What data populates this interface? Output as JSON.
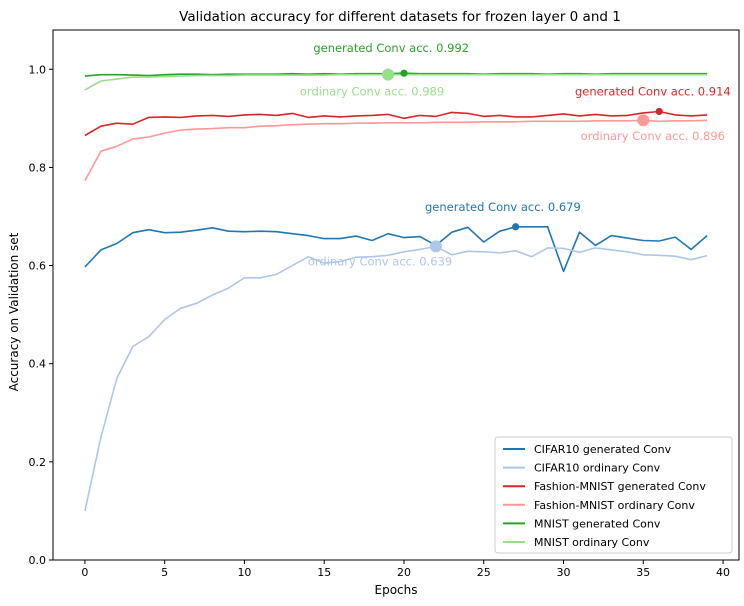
{
  "chart_data": {
    "type": "line",
    "title": "Validation accuracy for different datasets for frozen layer 0 and 1",
    "xlabel": "Epochs",
    "ylabel": "Accuracy on Validation set",
    "xlim": [
      -2.0,
      41.0
    ],
    "ylim": [
      0.0,
      1.08
    ],
    "xticks": [
      0,
      5,
      10,
      15,
      20,
      25,
      30,
      35,
      40
    ],
    "yticks": [
      0.0,
      0.2,
      0.4,
      0.6,
      0.8,
      1.0
    ],
    "xtick_labels": [
      "0",
      "5",
      "10",
      "15",
      "20",
      "25",
      "30",
      "35",
      "40"
    ],
    "ytick_labels": [
      "0.0",
      "0.2",
      "0.4",
      "0.6",
      "0.8",
      "1.0"
    ],
    "grid": false,
    "legend_position": "bottom-right",
    "x": [
      0,
      1,
      2,
      3,
      4,
      5,
      6,
      7,
      8,
      9,
      10,
      11,
      12,
      13,
      14,
      15,
      16,
      17,
      18,
      19,
      20,
      21,
      22,
      23,
      24,
      25,
      26,
      27,
      28,
      29,
      30,
      31,
      32,
      33,
      34,
      35,
      36,
      37,
      38,
      39
    ],
    "series": [
      {
        "name": "CIFAR10 generated Conv",
        "color": "#1f77b4",
        "values": [
          0.597,
          0.632,
          0.645,
          0.667,
          0.673,
          0.667,
          0.668,
          0.672,
          0.677,
          0.67,
          0.669,
          0.67,
          0.669,
          0.665,
          0.661,
          0.655,
          0.655,
          0.66,
          0.651,
          0.665,
          0.657,
          0.659,
          0.641,
          0.668,
          0.678,
          0.648,
          0.67,
          0.679,
          0.679,
          0.679,
          0.588,
          0.668,
          0.641,
          0.661,
          0.656,
          0.651,
          0.65,
          0.658,
          0.633,
          0.661
        ]
      },
      {
        "name": "CIFAR10 ordinary Conv",
        "color": "#aec7e8",
        "values": [
          0.1,
          0.25,
          0.37,
          0.435,
          0.455,
          0.49,
          0.513,
          0.523,
          0.54,
          0.554,
          0.575,
          0.575,
          0.582,
          0.6,
          0.618,
          0.605,
          0.608,
          0.617,
          0.618,
          0.621,
          0.628,
          0.633,
          0.639,
          0.622,
          0.629,
          0.628,
          0.626,
          0.63,
          0.618,
          0.636,
          0.635,
          0.627,
          0.636,
          0.632,
          0.628,
          0.622,
          0.621,
          0.619,
          0.612,
          0.62
        ]
      },
      {
        "name": "Fashion-MNIST generated Conv",
        "color": "#d62728",
        "values": [
          0.865,
          0.884,
          0.89,
          0.888,
          0.902,
          0.903,
          0.902,
          0.905,
          0.906,
          0.904,
          0.907,
          0.908,
          0.906,
          0.91,
          0.902,
          0.905,
          0.903,
          0.905,
          0.906,
          0.908,
          0.9,
          0.906,
          0.904,
          0.912,
          0.91,
          0.904,
          0.906,
          0.903,
          0.903,
          0.906,
          0.909,
          0.905,
          0.908,
          0.905,
          0.906,
          0.911,
          0.914,
          0.907,
          0.905,
          0.907
        ]
      },
      {
        "name": "Fashion-MNIST ordinary Conv",
        "color": "#ff9896",
        "values": [
          0.773,
          0.833,
          0.843,
          0.858,
          0.862,
          0.87,
          0.876,
          0.878,
          0.879,
          0.881,
          0.881,
          0.884,
          0.885,
          0.887,
          0.888,
          0.889,
          0.889,
          0.89,
          0.89,
          0.891,
          0.891,
          0.891,
          0.892,
          0.892,
          0.892,
          0.893,
          0.893,
          0.893,
          0.894,
          0.894,
          0.894,
          0.894,
          0.895,
          0.895,
          0.895,
          0.896,
          0.894,
          0.895,
          0.895,
          0.896
        ]
      },
      {
        "name": "MNIST generated Conv",
        "color": "#2ca02c",
        "values": [
          0.986,
          0.989,
          0.989,
          0.988,
          0.987,
          0.989,
          0.99,
          0.99,
          0.989,
          0.99,
          0.99,
          0.99,
          0.99,
          0.991,
          0.99,
          0.991,
          0.99,
          0.991,
          0.991,
          0.991,
          0.992,
          0.991,
          0.991,
          0.991,
          0.991,
          0.99,
          0.991,
          0.991,
          0.991,
          0.99,
          0.991,
          0.991,
          0.99,
          0.991,
          0.991,
          0.991,
          0.991,
          0.991,
          0.991,
          0.991
        ]
      },
      {
        "name": "MNIST ordinary Conv",
        "color": "#98df8a",
        "values": [
          0.958,
          0.976,
          0.98,
          0.984,
          0.984,
          0.985,
          0.986,
          0.987,
          0.987,
          0.987,
          0.988,
          0.988,
          0.988,
          0.988,
          0.988,
          0.988,
          0.989,
          0.989,
          0.989,
          0.989,
          0.989,
          0.989,
          0.989,
          0.989,
          0.989,
          0.989,
          0.989,
          0.989,
          0.989,
          0.989,
          0.989,
          0.989,
          0.989,
          0.989,
          0.989,
          0.989,
          0.989,
          0.989,
          0.989,
          0.989
        ]
      }
    ],
    "annotations": [
      {
        "text": "generated Conv acc. 0.992",
        "x": 20,
        "y": 0.992,
        "color": "#2ca02c",
        "big": false,
        "label_x": 19.2,
        "label_y": 1.035
      },
      {
        "text": "ordinary Conv acc. 0.989",
        "x": 19,
        "y": 0.989,
        "color": "#98df8a",
        "big": true,
        "label_x": 18.0,
        "label_y": 0.947
      },
      {
        "text": "generated Conv acc. 0.914",
        "x": 36,
        "y": 0.914,
        "color": "#d62728",
        "big": false,
        "label_x": 35.6,
        "label_y": 0.947
      },
      {
        "text": "ordinary Conv acc. 0.896",
        "x": 35,
        "y": 0.896,
        "color": "#ff9896",
        "big": true,
        "label_x": 35.6,
        "label_y": 0.856
      },
      {
        "text": "generated Conv acc. 0.679",
        "x": 27,
        "y": 0.679,
        "color": "#1f77b4",
        "big": false,
        "label_x": 26.2,
        "label_y": 0.711
      },
      {
        "text": "ordinary Conv acc. 0.639",
        "x": 22,
        "y": 0.639,
        "color": "#aec7e8",
        "big": true,
        "label_x": 18.5,
        "label_y": 0.6
      }
    ]
  }
}
